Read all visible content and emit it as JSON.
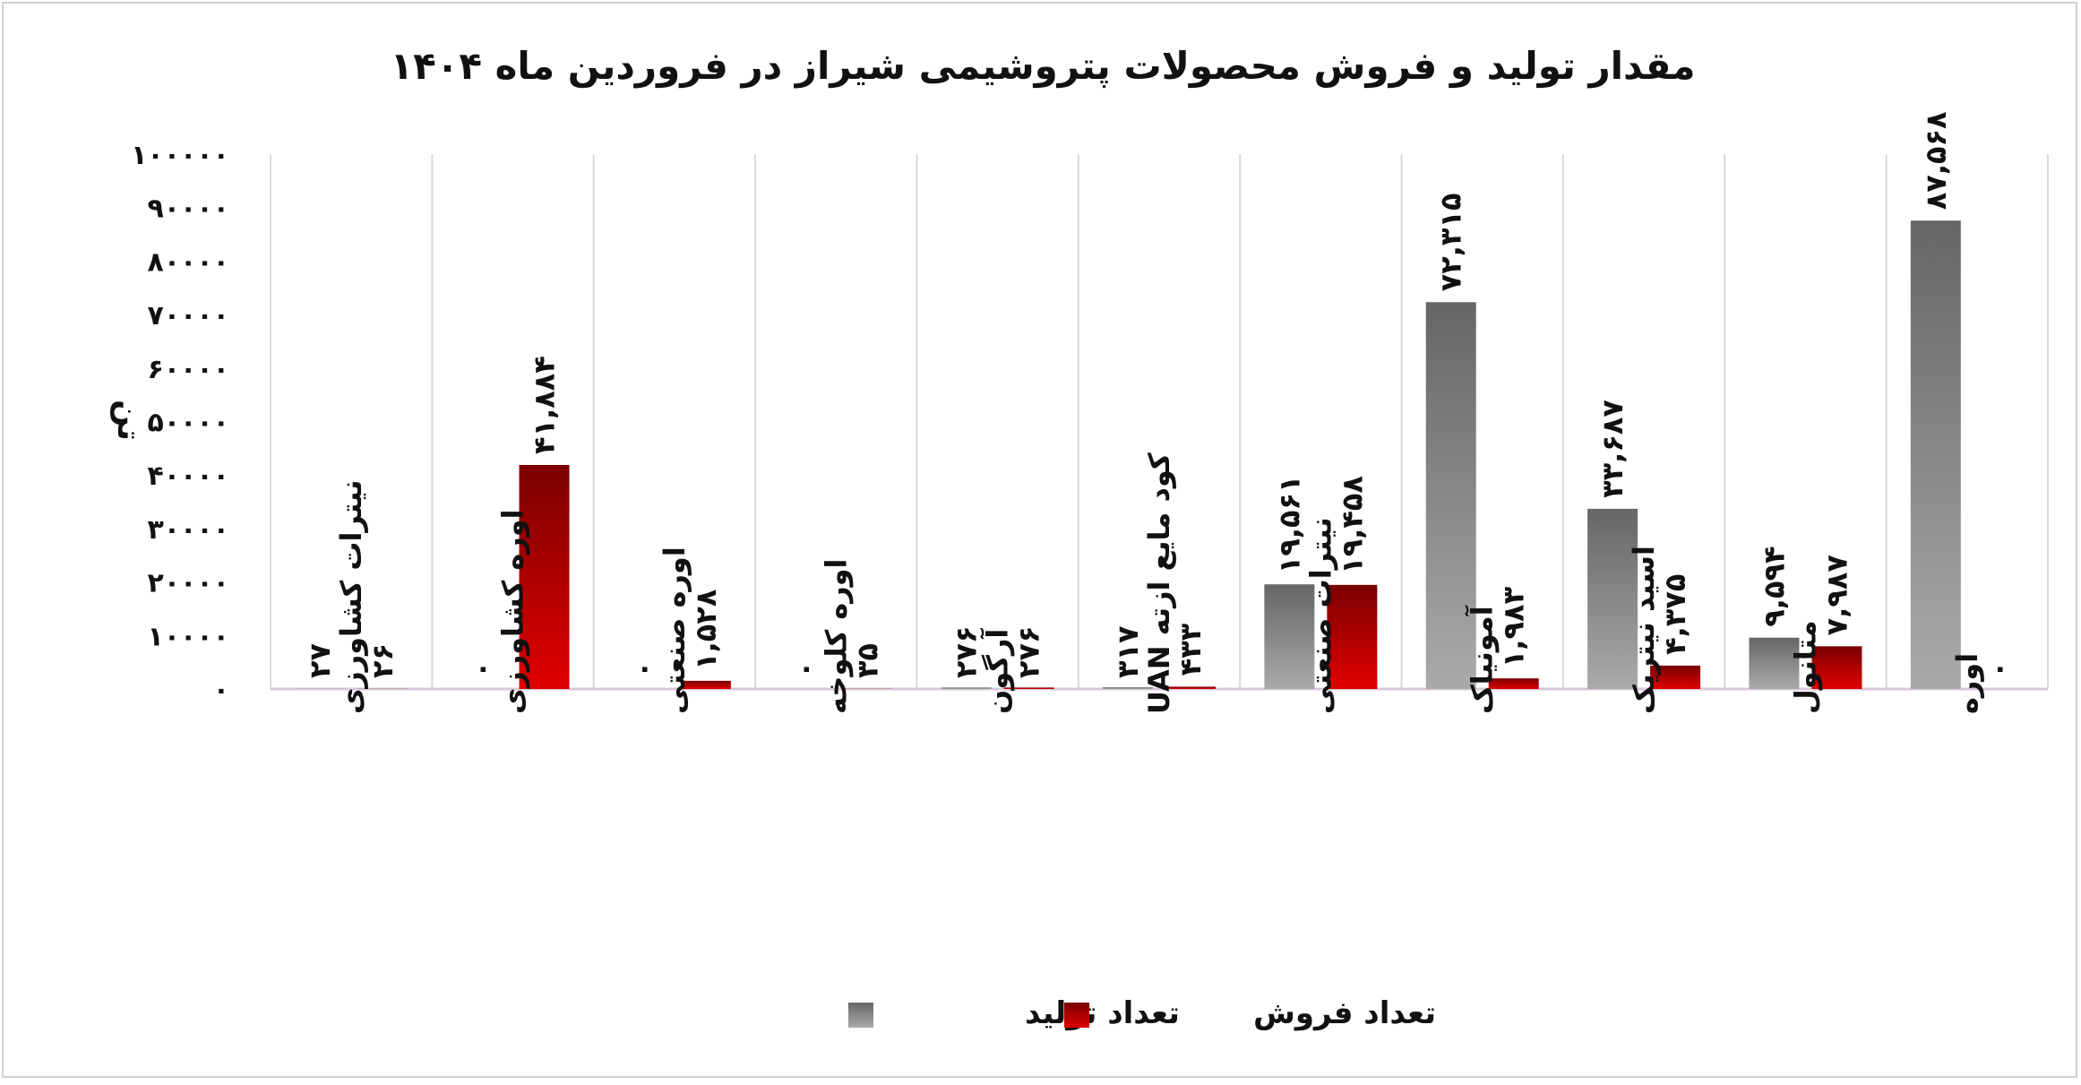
{
  "chart_data": {
    "type": "bar",
    "title": "مقدار تولید و فروش محصولات پتروشیمی شیراز در فروردین ماه ۱۴۰۴",
    "ylabel": "تن",
    "xlabel": "",
    "ylim": [
      0,
      100000
    ],
    "yticks": [
      0,
      10000,
      20000,
      30000,
      40000,
      50000,
      60000,
      70000,
      80000,
      90000,
      100000
    ],
    "ytick_labels": [
      "۰",
      "۱۰۰۰۰",
      "۲۰۰۰۰",
      "۳۰۰۰۰",
      "۴۰۰۰۰",
      "۵۰۰۰۰",
      "۶۰۰۰۰",
      "۷۰۰۰۰",
      "۸۰۰۰۰",
      "۹۰۰۰۰",
      "۱۰۰۰۰۰"
    ],
    "grid": true,
    "legend_position": "bottom",
    "categories": [
      "نیترات کشاورزی",
      "اوره کشاورزی",
      "اوره صنعتی",
      "اوره کلوخه",
      "آرگون",
      "کود مایع ازته UAN",
      "نیترات صنعتی",
      "آمونیاک",
      "اسید نیتریک",
      "متانول",
      "اوره"
    ],
    "series": [
      {
        "name": "تعداد تولید",
        "color": "#666666",
        "color_light": "#aaaaaa",
        "values": [
          27,
          0,
          0,
          0,
          276,
          317,
          19561,
          72315,
          33687,
          9594,
          87568
        ],
        "labels": [
          "۲۷",
          "۰",
          "۰",
          "۰",
          "۲۷۶",
          "۳۱۷",
          "۱۹,۵۶۱",
          "۷۲,۳۱۵",
          "۳۳,۶۸۷",
          "۹,۵۹۴",
          "۸۷,۵۶۸"
        ]
      },
      {
        "name": "تعداد فروش",
        "color": "#7a0000",
        "color_light": "#e00000",
        "values": [
          26,
          41884,
          1528,
          35,
          276,
          433,
          19458,
          1983,
          4375,
          7987,
          0
        ],
        "labels": [
          "۲۶",
          "۴۱,۸۸۴",
          "۱,۵۲۸",
          "۳۵",
          "۲۷۶",
          "۴۳۳",
          "۱۹,۴۵۸",
          "۱,۹۸۳",
          "۴,۳۷۵",
          "۷,۹۸۷",
          "۰"
        ]
      }
    ]
  }
}
